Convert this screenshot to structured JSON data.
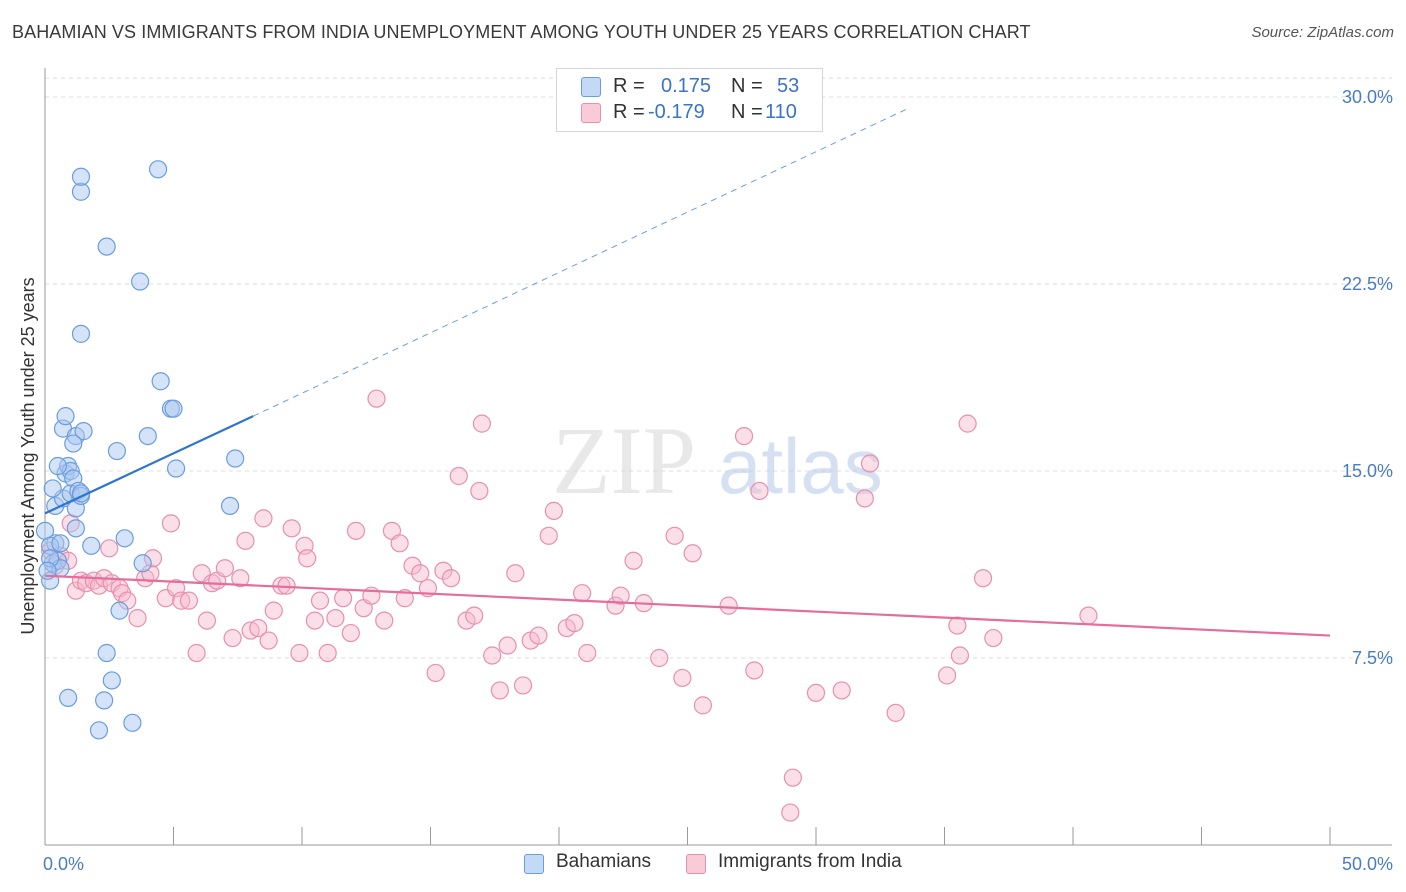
{
  "title": "BAHAMIAN VS IMMIGRANTS FROM INDIA UNEMPLOYMENT AMONG YOUTH UNDER 25 YEARS CORRELATION CHART",
  "source": "Source: ZipAtlas.com",
  "watermark": {
    "zip": "ZIP",
    "atlas": "atlas"
  },
  "colors": {
    "blue_fill": "#a9c8f0",
    "blue_stroke": "#6a9de0",
    "blue_line": "#2f74d0",
    "pink_fill": "#f6b8cb",
    "pink_stroke": "#e890ac",
    "pink_line": "#e36e9a",
    "grid": "#dcdcdc",
    "tick_text": "#4a7cc4"
  },
  "legend_top": {
    "rows": [
      {
        "r_label": "R =",
        "r_value": "0.175",
        "n_label": "N =",
        "n_value": "53"
      },
      {
        "r_label": "R =",
        "r_value": "-0.179",
        "n_label": "N =",
        "n_value": "110"
      }
    ]
  },
  "legend_bottom": {
    "items": [
      "Bahamians",
      "Immigrants from India"
    ]
  },
  "chart_data": {
    "type": "scatter",
    "title": "BAHAMIAN VS IMMIGRANTS FROM INDIA UNEMPLOYMENT AMONG YOUTH UNDER 25 YEARS CORRELATION CHART",
    "xlabel": "",
    "ylabel": "Unemployment Among Youth under 25 years",
    "xlim": [
      0,
      50
    ],
    "ylim": [
      0,
      30
    ],
    "x_tick_labels": [
      "0.0%",
      "50.0%"
    ],
    "y_ticks": [
      7.5,
      15.0,
      22.5,
      30.0
    ],
    "y_tick_labels": [
      "7.5%",
      "15.0%",
      "22.5%",
      "30.0%"
    ],
    "grid": true,
    "legend_placement": "top-center",
    "series": [
      {
        "name": "Bahamians",
        "r": 0.175,
        "n": 53,
        "trend": {
          "x0": 0.0,
          "y0": 13.3,
          "x1": 8.1,
          "y1": 17.2,
          "x_end_dashed": 33.5,
          "y_end_dashed": 29.5
        },
        "points": [
          [
            0.0,
            12.6
          ],
          [
            0.2,
            10.6
          ],
          [
            0.3,
            11.3
          ],
          [
            0.4,
            12.1
          ],
          [
            0.2,
            12.0
          ],
          [
            0.5,
            11.4
          ],
          [
            0.6,
            11.1
          ],
          [
            0.4,
            13.6
          ],
          [
            0.7,
            13.9
          ],
          [
            0.8,
            14.9
          ],
          [
            0.3,
            14.3
          ],
          [
            0.9,
            15.2
          ],
          [
            1.0,
            15.0
          ],
          [
            0.5,
            15.2
          ],
          [
            1.1,
            14.7
          ],
          [
            1.0,
            14.1
          ],
          [
            1.2,
            13.5
          ],
          [
            1.3,
            14.2
          ],
          [
            1.4,
            14.0
          ],
          [
            0.7,
            16.7
          ],
          [
            0.8,
            17.2
          ],
          [
            1.2,
            16.4
          ],
          [
            1.5,
            16.6
          ],
          [
            1.1,
            16.1
          ],
          [
            2.8,
            15.8
          ],
          [
            4.0,
            16.4
          ],
          [
            4.9,
            17.5
          ],
          [
            5.0,
            17.5
          ],
          [
            5.1,
            15.1
          ],
          [
            4.5,
            18.6
          ],
          [
            7.4,
            15.5
          ],
          [
            7.2,
            13.6
          ],
          [
            1.4,
            20.5
          ],
          [
            3.7,
            22.6
          ],
          [
            2.4,
            24.0
          ],
          [
            1.4,
            26.2
          ],
          [
            1.4,
            26.8
          ],
          [
            4.4,
            27.1
          ],
          [
            3.1,
            12.3
          ],
          [
            1.8,
            12.0
          ],
          [
            1.2,
            12.7
          ],
          [
            3.8,
            11.3
          ],
          [
            2.9,
            9.4
          ],
          [
            2.4,
            7.7
          ],
          [
            2.6,
            6.6
          ],
          [
            0.9,
            5.9
          ],
          [
            2.3,
            5.8
          ],
          [
            3.4,
            4.9
          ],
          [
            2.1,
            4.6
          ],
          [
            0.2,
            11.5
          ],
          [
            0.6,
            12.1
          ],
          [
            0.1,
            11.0
          ],
          [
            1.4,
            14.1
          ]
        ]
      },
      {
        "name": "Immigrants from India",
        "r": -0.179,
        "n": 110,
        "trend": {
          "x0": 0.0,
          "y0": 10.8,
          "x1": 50.0,
          "y1": 8.4
        },
        "points": [
          [
            0.2,
            11.8
          ],
          [
            0.4,
            11.2
          ],
          [
            0.6,
            11.6
          ],
          [
            0.9,
            11.4
          ],
          [
            1.0,
            12.9
          ],
          [
            1.2,
            10.2
          ],
          [
            1.4,
            10.6
          ],
          [
            1.6,
            10.5
          ],
          [
            1.9,
            10.6
          ],
          [
            2.1,
            10.4
          ],
          [
            2.3,
            10.7
          ],
          [
            2.6,
            10.5
          ],
          [
            2.5,
            11.9
          ],
          [
            2.9,
            10.3
          ],
          [
            3.0,
            10.1
          ],
          [
            3.2,
            9.8
          ],
          [
            3.6,
            9.1
          ],
          [
            3.9,
            10.7
          ],
          [
            4.1,
            10.9
          ],
          [
            4.2,
            11.5
          ],
          [
            4.7,
            9.9
          ],
          [
            4.9,
            12.9
          ],
          [
            5.1,
            10.3
          ],
          [
            5.3,
            9.8
          ],
          [
            5.6,
            9.8
          ],
          [
            5.9,
            7.7
          ],
          [
            6.1,
            10.9
          ],
          [
            6.3,
            9.0
          ],
          [
            6.5,
            10.5
          ],
          [
            6.7,
            10.6
          ],
          [
            7.0,
            11.1
          ],
          [
            7.3,
            8.3
          ],
          [
            7.6,
            10.7
          ],
          [
            7.8,
            12.2
          ],
          [
            8.0,
            8.6
          ],
          [
            8.3,
            8.7
          ],
          [
            8.5,
            13.1
          ],
          [
            8.7,
            8.2
          ],
          [
            8.9,
            9.4
          ],
          [
            9.2,
            10.4
          ],
          [
            9.4,
            10.4
          ],
          [
            9.6,
            12.7
          ],
          [
            9.9,
            7.7
          ],
          [
            10.1,
            12.0
          ],
          [
            10.2,
            11.5
          ],
          [
            10.5,
            9.0
          ],
          [
            10.7,
            9.8
          ],
          [
            11.0,
            7.7
          ],
          [
            11.3,
            9.1
          ],
          [
            11.6,
            9.9
          ],
          [
            11.9,
            8.5
          ],
          [
            12.1,
            12.6
          ],
          [
            12.4,
            9.5
          ],
          [
            12.7,
            10.0
          ],
          [
            12.9,
            17.9
          ],
          [
            13.2,
            9.0
          ],
          [
            13.5,
            12.6
          ],
          [
            13.8,
            12.1
          ],
          [
            14.0,
            9.9
          ],
          [
            14.3,
            11.2
          ],
          [
            14.6,
            10.9
          ],
          [
            14.9,
            10.3
          ],
          [
            15.2,
            6.9
          ],
          [
            15.5,
            11.0
          ],
          [
            15.8,
            10.7
          ],
          [
            16.1,
            14.8
          ],
          [
            16.4,
            9.0
          ],
          [
            16.7,
            9.2
          ],
          [
            16.9,
            14.2
          ],
          [
            17.0,
            16.9
          ],
          [
            17.4,
            7.6
          ],
          [
            17.7,
            6.2
          ],
          [
            18.0,
            8.0
          ],
          [
            18.3,
            10.9
          ],
          [
            18.6,
            6.4
          ],
          [
            18.9,
            8.2
          ],
          [
            19.2,
            8.4
          ],
          [
            19.6,
            12.4
          ],
          [
            19.8,
            13.4
          ],
          [
            20.3,
            8.7
          ],
          [
            20.6,
            8.9
          ],
          [
            20.9,
            10.1
          ],
          [
            21.1,
            7.7
          ],
          [
            22.2,
            9.6
          ],
          [
            22.4,
            10.0
          ],
          [
            22.9,
            11.4
          ],
          [
            23.3,
            9.7
          ],
          [
            23.9,
            7.5
          ],
          [
            24.5,
            12.4
          ],
          [
            24.8,
            6.7
          ],
          [
            25.2,
            11.7
          ],
          [
            25.6,
            5.6
          ],
          [
            26.6,
            9.6
          ],
          [
            27.2,
            16.4
          ],
          [
            27.6,
            7.0
          ],
          [
            27.8,
            14.2
          ],
          [
            29.0,
            1.3
          ],
          [
            29.1,
            2.7
          ],
          [
            30.0,
            6.1
          ],
          [
            31.0,
            6.2
          ],
          [
            31.9,
            13.9
          ],
          [
            32.1,
            15.3
          ],
          [
            33.1,
            5.3
          ],
          [
            35.1,
            6.8
          ],
          [
            35.5,
            8.8
          ],
          [
            35.6,
            7.6
          ],
          [
            35.9,
            16.9
          ],
          [
            36.9,
            8.3
          ],
          [
            36.5,
            10.7
          ],
          [
            40.6,
            9.2
          ]
        ]
      }
    ]
  }
}
